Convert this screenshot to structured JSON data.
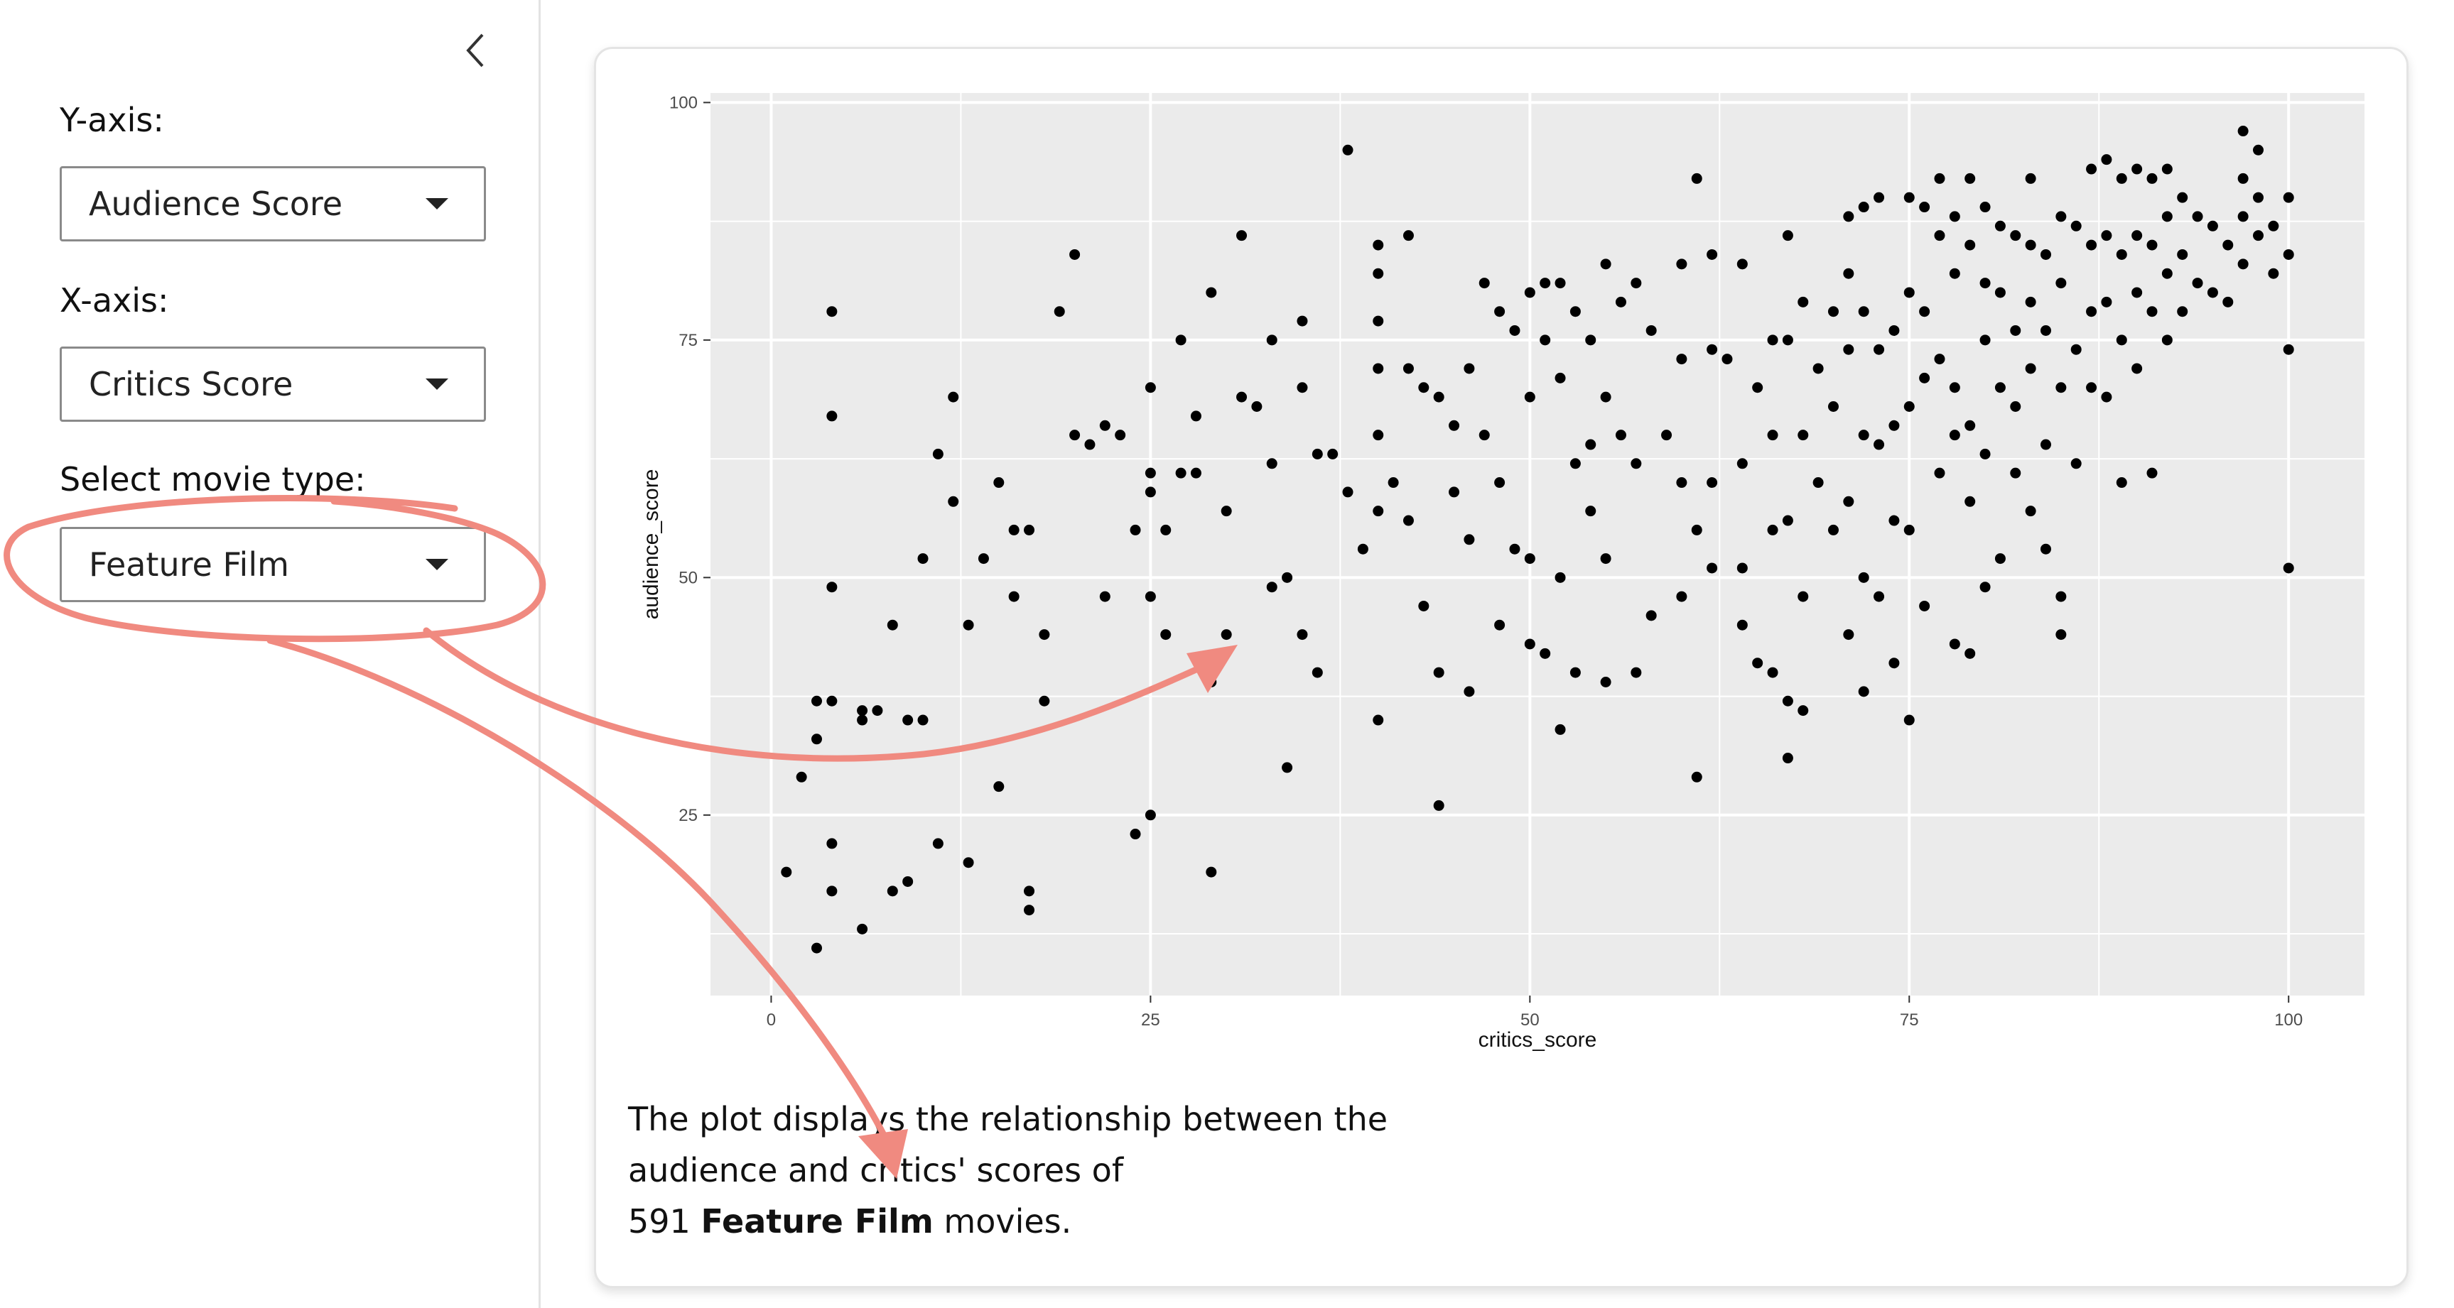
{
  "sidebar": {
    "collapse_icon": "chevron-left-icon",
    "y_axis": {
      "label": "Y-axis:",
      "selected": "Audience Score"
    },
    "x_axis": {
      "label": "X-axis:",
      "selected": "Critics Score"
    },
    "movie_type": {
      "label": "Select movie type:",
      "selected": "Feature Film"
    }
  },
  "caption": {
    "line1": "The plot displays the relationship between the",
    "line2": "audience and critics' scores of",
    "count": "591",
    "type": "Feature Film",
    "suffix": "movies."
  },
  "colors": {
    "panel_bg": "#ebebeb",
    "grid": "#ffffff",
    "point": "#000000",
    "annotation": "#f08a80"
  },
  "chart_data": {
    "type": "scatter",
    "title": "",
    "xlabel": "critics_score",
    "ylabel": "audience_score",
    "xlim": [
      -4,
      105
    ],
    "ylim": [
      6,
      101
    ],
    "xticks": [
      0,
      25,
      50,
      75,
      100
    ],
    "yticks": [
      25,
      50,
      75,
      100
    ],
    "grid": true,
    "legend": "none",
    "points": [
      [
        1,
        19
      ],
      [
        2,
        29
      ],
      [
        3,
        11
      ],
      [
        4,
        78
      ],
      [
        4,
        67
      ],
      [
        4,
        49
      ],
      [
        4,
        37
      ],
      [
        4,
        22
      ],
      [
        4,
        17
      ],
      [
        6,
        13
      ],
      [
        3,
        33
      ],
      [
        3,
        37
      ],
      [
        6,
        36
      ],
      [
        6,
        35
      ],
      [
        7,
        36
      ],
      [
        8,
        17
      ],
      [
        8,
        45
      ],
      [
        9,
        35
      ],
      [
        9,
        18
      ],
      [
        10,
        52
      ],
      [
        10,
        35
      ],
      [
        11,
        22
      ],
      [
        11,
        63
      ],
      [
        12,
        58
      ],
      [
        12,
        69
      ],
      [
        13,
        45
      ],
      [
        13,
        20
      ],
      [
        14,
        52
      ],
      [
        15,
        60
      ],
      [
        15,
        28
      ],
      [
        16,
        48
      ],
      [
        16,
        55
      ],
      [
        17,
        55
      ],
      [
        17,
        17
      ],
      [
        17,
        15
      ],
      [
        18,
        44
      ],
      [
        18,
        37
      ],
      [
        19,
        78
      ],
      [
        20,
        84
      ],
      [
        20,
        65
      ],
      [
        21,
        64
      ],
      [
        22,
        66
      ],
      [
        22,
        48
      ],
      [
        23,
        65
      ],
      [
        24,
        55
      ],
      [
        24,
        23
      ],
      [
        25,
        70
      ],
      [
        25,
        61
      ],
      [
        25,
        59
      ],
      [
        25,
        48
      ],
      [
        25,
        25
      ],
      [
        26,
        55
      ],
      [
        26,
        44
      ],
      [
        27,
        61
      ],
      [
        27,
        75
      ],
      [
        28,
        67
      ],
      [
        28,
        61
      ],
      [
        29,
        80
      ],
      [
        29,
        39
      ],
      [
        29,
        19
      ],
      [
        30,
        57
      ],
      [
        30,
        44
      ],
      [
        31,
        86
      ],
      [
        31,
        69
      ],
      [
        32,
        68
      ],
      [
        33,
        75
      ],
      [
        33,
        62
      ],
      [
        33,
        49
      ],
      [
        34,
        50
      ],
      [
        34,
        30
      ],
      [
        35,
        77
      ],
      [
        35,
        70
      ],
      [
        35,
        44
      ],
      [
        36,
        63
      ],
      [
        36,
        40
      ],
      [
        37,
        63
      ],
      [
        38,
        95
      ],
      [
        38,
        59
      ],
      [
        39,
        53
      ],
      [
        40,
        85
      ],
      [
        40,
        82
      ],
      [
        40,
        77
      ],
      [
        40,
        72
      ],
      [
        40,
        65
      ],
      [
        40,
        57
      ],
      [
        40,
        35
      ],
      [
        41,
        60
      ],
      [
        42,
        86
      ],
      [
        42,
        72
      ],
      [
        42,
        56
      ],
      [
        43,
        70
      ],
      [
        43,
        47
      ],
      [
        44,
        69
      ],
      [
        44,
        40
      ],
      [
        44,
        26
      ],
      [
        45,
        66
      ],
      [
        45,
        59
      ],
      [
        46,
        72
      ],
      [
        46,
        54
      ],
      [
        46,
        38
      ],
      [
        47,
        81
      ],
      [
        47,
        65
      ],
      [
        48,
        78
      ],
      [
        48,
        60
      ],
      [
        48,
        45
      ],
      [
        49,
        76
      ],
      [
        49,
        53
      ],
      [
        50,
        80
      ],
      [
        50,
        69
      ],
      [
        50,
        52
      ],
      [
        50,
        43
      ],
      [
        51,
        81
      ],
      [
        51,
        75
      ],
      [
        51,
        42
      ],
      [
        52,
        81
      ],
      [
        52,
        71
      ],
      [
        52,
        50
      ],
      [
        52,
        34
      ],
      [
        53,
        78
      ],
      [
        53,
        62
      ],
      [
        53,
        40
      ],
      [
        54,
        75
      ],
      [
        54,
        64
      ],
      [
        54,
        57
      ],
      [
        55,
        83
      ],
      [
        55,
        69
      ],
      [
        55,
        52
      ],
      [
        55,
        39
      ],
      [
        56,
        79
      ],
      [
        56,
        65
      ],
      [
        57,
        81
      ],
      [
        57,
        62
      ],
      [
        57,
        40
      ],
      [
        58,
        76
      ],
      [
        58,
        46
      ],
      [
        59,
        65
      ],
      [
        60,
        83
      ],
      [
        60,
        73
      ],
      [
        60,
        60
      ],
      [
        60,
        48
      ],
      [
        61,
        92
      ],
      [
        61,
        55
      ],
      [
        61,
        29
      ],
      [
        62,
        84
      ],
      [
        62,
        74
      ],
      [
        62,
        60
      ],
      [
        62,
        51
      ],
      [
        63,
        73
      ],
      [
        64,
        83
      ],
      [
        64,
        62
      ],
      [
        64,
        51
      ],
      [
        64,
        45
      ],
      [
        65,
        70
      ],
      [
        65,
        41
      ],
      [
        66,
        75
      ],
      [
        66,
        65
      ],
      [
        66,
        55
      ],
      [
        66,
        40
      ],
      [
        67,
        86
      ],
      [
        67,
        75
      ],
      [
        67,
        56
      ],
      [
        67,
        37
      ],
      [
        67,
        31
      ],
      [
        68,
        79
      ],
      [
        68,
        65
      ],
      [
        68,
        48
      ],
      [
        68,
        36
      ],
      [
        69,
        72
      ],
      [
        69,
        60
      ],
      [
        70,
        78
      ],
      [
        70,
        68
      ],
      [
        70,
        55
      ],
      [
        71,
        88
      ],
      [
        71,
        82
      ],
      [
        71,
        74
      ],
      [
        71,
        58
      ],
      [
        71,
        44
      ],
      [
        72,
        89
      ],
      [
        72,
        78
      ],
      [
        72,
        65
      ],
      [
        72,
        50
      ],
      [
        72,
        38
      ],
      [
        73,
        90
      ],
      [
        73,
        74
      ],
      [
        73,
        64
      ],
      [
        73,
        48
      ],
      [
        74,
        76
      ],
      [
        74,
        66
      ],
      [
        74,
        56
      ],
      [
        74,
        41
      ],
      [
        75,
        90
      ],
      [
        75,
        80
      ],
      [
        75,
        68
      ],
      [
        75,
        55
      ],
      [
        75,
        35
      ],
      [
        76,
        89
      ],
      [
        76,
        78
      ],
      [
        76,
        71
      ],
      [
        76,
        47
      ],
      [
        77,
        92
      ],
      [
        77,
        86
      ],
      [
        77,
        73
      ],
      [
        77,
        61
      ],
      [
        78,
        88
      ],
      [
        78,
        82
      ],
      [
        78,
        70
      ],
      [
        78,
        65
      ],
      [
        78,
        43
      ],
      [
        79,
        92
      ],
      [
        79,
        85
      ],
      [
        79,
        66
      ],
      [
        79,
        58
      ],
      [
        79,
        42
      ],
      [
        80,
        89
      ],
      [
        80,
        81
      ],
      [
        80,
        75
      ],
      [
        80,
        63
      ],
      [
        80,
        49
      ],
      [
        81,
        87
      ],
      [
        81,
        80
      ],
      [
        81,
        70
      ],
      [
        81,
        52
      ],
      [
        82,
        86
      ],
      [
        82,
        76
      ],
      [
        82,
        68
      ],
      [
        82,
        61
      ],
      [
        83,
        92
      ],
      [
        83,
        85
      ],
      [
        83,
        79
      ],
      [
        83,
        72
      ],
      [
        83,
        57
      ],
      [
        84,
        84
      ],
      [
        84,
        76
      ],
      [
        84,
        64
      ],
      [
        84,
        53
      ],
      [
        85,
        88
      ],
      [
        85,
        81
      ],
      [
        85,
        70
      ],
      [
        85,
        48
      ],
      [
        85,
        44
      ],
      [
        86,
        87
      ],
      [
        86,
        74
      ],
      [
        86,
        62
      ],
      [
        87,
        93
      ],
      [
        87,
        85
      ],
      [
        87,
        78
      ],
      [
        87,
        70
      ],
      [
        88,
        94
      ],
      [
        88,
        86
      ],
      [
        88,
        79
      ],
      [
        88,
        69
      ],
      [
        89,
        92
      ],
      [
        89,
        84
      ],
      [
        89,
        75
      ],
      [
        89,
        60
      ],
      [
        90,
        93
      ],
      [
        90,
        86
      ],
      [
        90,
        80
      ],
      [
        90,
        72
      ],
      [
        91,
        92
      ],
      [
        91,
        85
      ],
      [
        91,
        78
      ],
      [
        91,
        61
      ],
      [
        92,
        93
      ],
      [
        92,
        88
      ],
      [
        92,
        82
      ],
      [
        92,
        75
      ],
      [
        93,
        90
      ],
      [
        93,
        84
      ],
      [
        93,
        78
      ],
      [
        94,
        88
      ],
      [
        94,
        81
      ],
      [
        95,
        87
      ],
      [
        95,
        80
      ],
      [
        96,
        85
      ],
      [
        96,
        79
      ],
      [
        97,
        97
      ],
      [
        97,
        92
      ],
      [
        97,
        88
      ],
      [
        97,
        83
      ],
      [
        98,
        95
      ],
      [
        98,
        90
      ],
      [
        98,
        86
      ],
      [
        99,
        87
      ],
      [
        99,
        82
      ],
      [
        100,
        90
      ],
      [
        100,
        84
      ],
      [
        100,
        74
      ],
      [
        100,
        51
      ]
    ]
  }
}
